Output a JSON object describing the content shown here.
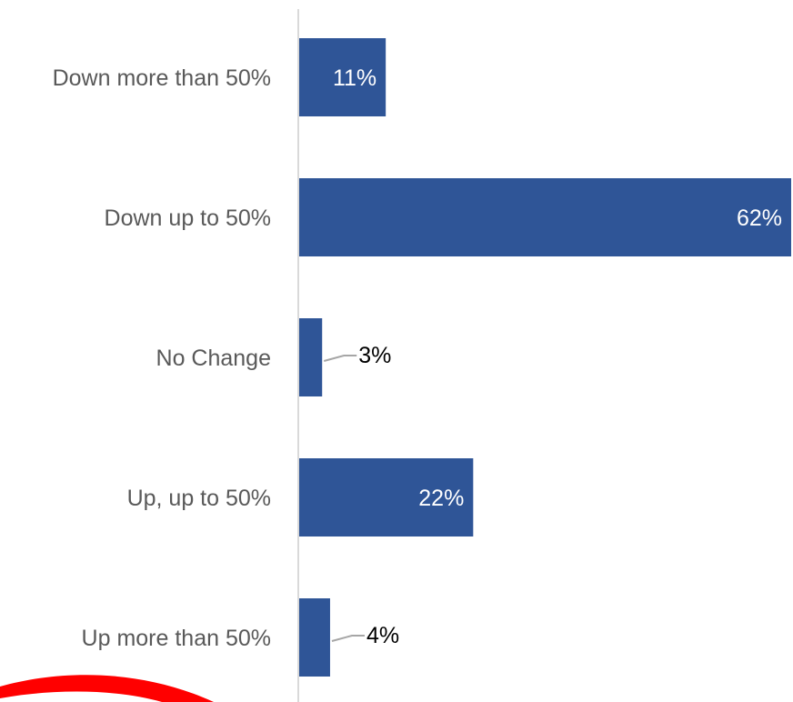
{
  "chart_data": {
    "type": "bar",
    "orientation": "horizontal",
    "categories": [
      "Down more than 50%",
      "Down up to 50%",
      "No Change",
      "Up, up to 50%",
      "Up more than 50%"
    ],
    "values": [
      11,
      62,
      3,
      22,
      4
    ],
    "value_labels": [
      "11%",
      "62%",
      "3%",
      "22%",
      "4%"
    ],
    "title": "",
    "xlabel": "",
    "ylabel": "",
    "xlim": [
      0,
      62
    ],
    "grid": false,
    "legend": "none"
  },
  "colors": {
    "bar": "#2f5597",
    "axis": "#d9d9d9",
    "label": "#595959",
    "inside_label": "#ffffff",
    "outside_label": "#000000",
    "leader_line": "#a6a6a6",
    "annotation_stroke": "#ff0000"
  }
}
